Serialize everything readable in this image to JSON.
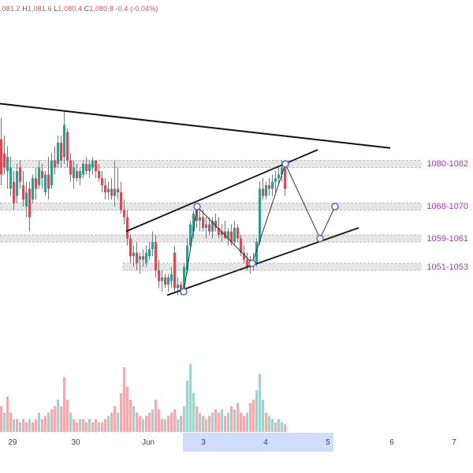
{
  "ohlc_header": {
    "open_partial": ",081.2",
    "high_label": "H",
    "high": "1,081.6",
    "low_label": "L",
    "low": "1,080.4",
    "close_label": "C",
    "close": "1,080.8",
    "change": "-0.4 (-0.04%)"
  },
  "colors": {
    "up": "#26a69a",
    "down": "#e0525a",
    "candle_up": "#2e9e8f",
    "candle_down": "#d94a57",
    "vol_up": "#9fd3c9",
    "vol_down": "#f3a9ae",
    "zone_label": "#a040a8",
    "selection": "#cfdcfb",
    "point": "#4a6fd8"
  },
  "chart_data": {
    "type": "candlestick",
    "instrument_price_range": [
      1040,
      1096
    ],
    "zones": [
      {
        "label": "1080-1082",
        "low": 1080,
        "high": 1082
      },
      {
        "label": "1068-1070",
        "low": 1068,
        "high": 1070
      },
      {
        "label": "1059-1061",
        "low": 1059,
        "high": 1061
      },
      {
        "label": "1051-1053",
        "low": 1051,
        "high": 1053
      }
    ],
    "x_ticks": [
      "29",
      "30",
      "Jun",
      "3",
      "4",
      "5",
      "6",
      "7"
    ],
    "selected_range": [
      "3",
      "5"
    ],
    "trendlines": [
      {
        "name": "descending-resistance",
        "from": [
          0,
          1098
        ],
        "to": [
          495,
          1085.5
        ]
      },
      {
        "name": "channel-upper",
        "from": [
          160,
          1062
        ],
        "to": [
          403,
          1085
        ]
      },
      {
        "name": "channel-lower",
        "from": [
          212,
          1044
        ],
        "to": [
          455,
          1063
        ]
      }
    ],
    "projection_path": [
      {
        "x": 233,
        "price": 1045
      },
      {
        "x": 250,
        "price": 1069
      },
      {
        "x": 320,
        "price": 1053
      },
      {
        "x": 362,
        "price": 1081
      },
      {
        "x": 406,
        "price": 1060
      },
      {
        "x": 425,
        "price": 1069
      }
    ]
  }
}
